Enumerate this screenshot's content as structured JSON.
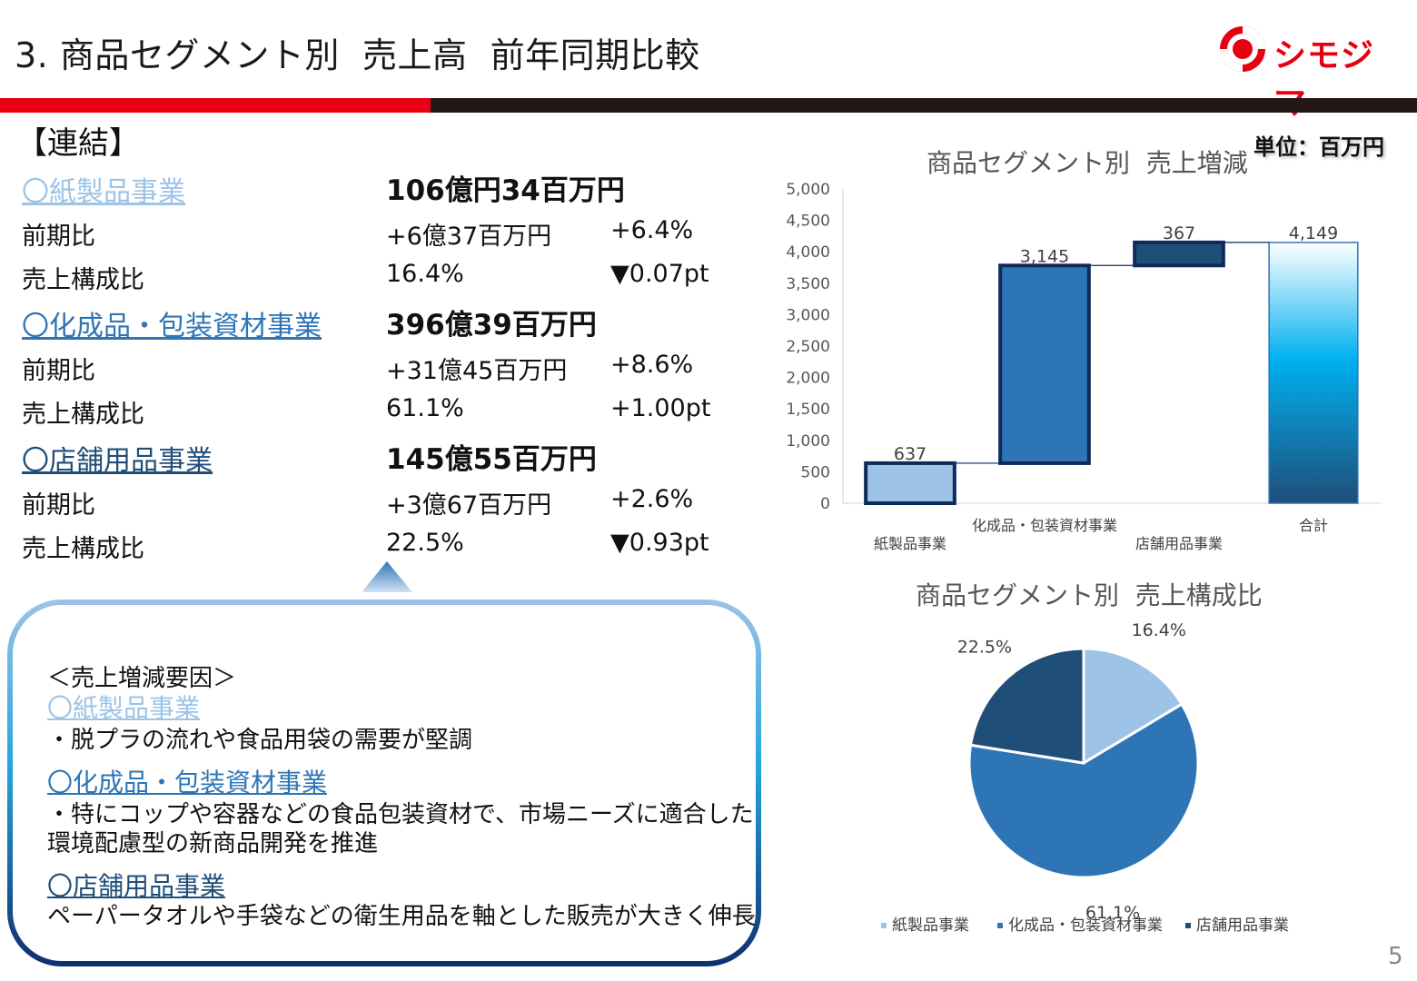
{
  "header": {
    "title": "3. 商品セグメント別  売上高  前年同期比較",
    "logo_text": "シモジマ"
  },
  "left": {
    "consolidated_label": "【連結】",
    "segments": [
      {
        "name": "〇紙製品事業",
        "total": "106億円34百万円",
        "yoy_label": "前期比",
        "yoy_amount": "+6億37百万円",
        "yoy_pct": "+6.4%",
        "share_label": "売上構成比",
        "share": "16.4%",
        "share_change": "▼0.07pt"
      },
      {
        "name": "〇化成品・包装資材事業",
        "total": "396億39百万円",
        "yoy_label": "前期比",
        "yoy_amount": "+31億45百万円",
        "yoy_pct": "+8.6%",
        "share_label": "売上構成比",
        "share": "61.1%",
        "share_change": "+1.00pt"
      },
      {
        "name": "〇店舗用品事業",
        "total": "145億55百万円",
        "yoy_label": "前期比",
        "yoy_amount": "+3億67百万円",
        "yoy_pct": "+2.6%",
        "share_label": "売上構成比",
        "share": "22.5%",
        "share_change": "▼0.93pt"
      }
    ]
  },
  "factors": {
    "heading": "＜売上増減要因＞",
    "items": [
      {
        "seg": "〇紙製品事業",
        "text1": "・脱プラの流れや食品用袋の需要が堅調",
        "text2": ""
      },
      {
        "seg": "〇化成品・包装資材事業",
        "text1": "・特にコップや容器などの食品包装資材で、市場ニーズに適合した",
        "text2": "環境配慮型の新商品開発を推進"
      },
      {
        "seg": "〇店舗用品事業",
        "text1": "ペーパータオルや手袋などの衛生用品を軸とした販売が大きく伸長",
        "text2": ""
      }
    ]
  },
  "unit": "単位：百万円",
  "colors": {
    "light": "#9dc3e6",
    "mid": "#2e75b6",
    "dark": "#1f4e79",
    "red": "#e60012",
    "navy": "#0f2a5a"
  },
  "chart_data": [
    {
      "type": "bar",
      "subtype": "waterfall",
      "title": "商品セグメント別  売上増減",
      "categories": [
        "紙製品事業",
        "化成品・包装資材事業",
        "店舗用品事業",
        "合計"
      ],
      "values": [
        637,
        3145,
        367,
        4149
      ],
      "data_labels": [
        "637",
        "3,145",
        "367",
        "4,149"
      ],
      "bar_colors": [
        "#9dc3e6",
        "#2e75b6",
        "#1f4e79",
        "gradient"
      ],
      "y_ticks": [
        "0",
        "500",
        "1,000",
        "1,500",
        "2,000",
        "2,500",
        "3,000",
        "3,500",
        "4,000",
        "4,500",
        "5,000"
      ],
      "ylim": [
        0,
        5000
      ],
      "grid": false,
      "legend": "none"
    },
    {
      "type": "pie",
      "title": "商品セグメント別  売上構成比",
      "labels": [
        "紙製品事業",
        "化成品・包装資材事業",
        "店舗用品事業"
      ],
      "values": [
        16.4,
        61.1,
        22.5
      ],
      "data_labels": [
        "16.4%",
        "61.1%",
        "22.5%"
      ],
      "colors": [
        "#9dc3e6",
        "#2e75b6",
        "#1f4e79"
      ],
      "legend": "bottom"
    }
  ],
  "page_number": "5"
}
